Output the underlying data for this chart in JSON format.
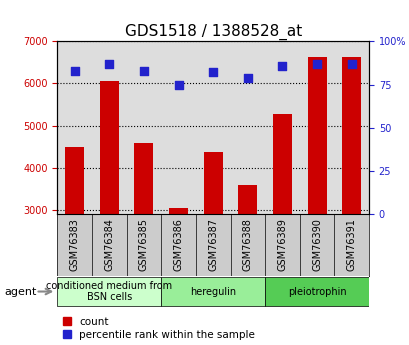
{
  "title": "GDS1518 / 1388528_at",
  "samples": [
    "GSM76383",
    "GSM76384",
    "GSM76385",
    "GSM76386",
    "GSM76387",
    "GSM76388",
    "GSM76389",
    "GSM76390",
    "GSM76391"
  ],
  "counts": [
    4500,
    6050,
    4580,
    3050,
    4370,
    3580,
    5270,
    6640,
    6640
  ],
  "percentiles": [
    83,
    87,
    83,
    75,
    82,
    79,
    86,
    87,
    87
  ],
  "ylim_left": [
    2900,
    7000
  ],
  "ylim_right": [
    0,
    100
  ],
  "yticks_left": [
    3000,
    4000,
    5000,
    6000,
    7000
  ],
  "yticks_right": [
    0,
    25,
    50,
    75,
    100
  ],
  "bar_color": "#cc0000",
  "dot_color": "#2222cc",
  "bar_width": 0.55,
  "dot_size": 28,
  "groups": [
    {
      "label": "conditioned medium from\nBSN cells",
      "start": 0,
      "end": 2,
      "color": "#ccffcc"
    },
    {
      "label": "heregulin",
      "start": 3,
      "end": 5,
      "color": "#99ee99"
    },
    {
      "label": "pleiotrophin",
      "start": 6,
      "end": 8,
      "color": "#55cc55"
    }
  ],
  "agent_label": "agent",
  "legend_count_label": "count",
  "legend_pct_label": "percentile rank within the sample",
  "bg_color": "#ffffff",
  "plot_bg_color": "#dddddd",
  "sample_row_color": "#cccccc",
  "title_fontsize": 11,
  "tick_fontsize": 7,
  "group_fontsize": 7,
  "legend_fontsize": 7.5
}
